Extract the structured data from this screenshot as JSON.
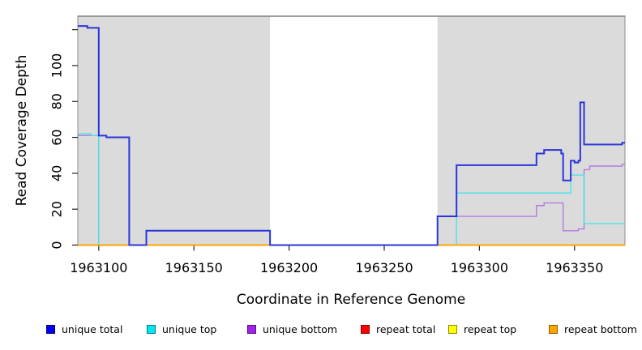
{
  "axes": {
    "x_title": "Coordinate in Reference Genome",
    "y_title": "Read Coverage Depth"
  },
  "chart_data": {
    "type": "line",
    "subtype": "step-coverage",
    "xlabel": "Coordinate in Reference Genome",
    "ylabel": "Read Coverage Depth",
    "xlim": [
      1963089,
      1963376.5
    ],
    "ylim": [
      0,
      127.5
    ],
    "grid": false,
    "background_color": "#ffffff",
    "shade_color": "#dbdbdb",
    "border_color": "#8c8c8c",
    "x_ticks": [
      {
        "v": 1963100,
        "label": "1963100"
      },
      {
        "v": 1963150,
        "label": "1963150"
      },
      {
        "v": 1963200,
        "label": "1963200"
      },
      {
        "v": 1963250,
        "label": "1963250"
      },
      {
        "v": 1963300,
        "label": "1963300"
      },
      {
        "v": 1963350,
        "label": "1963350"
      }
    ],
    "y_ticks": [
      {
        "v": 0,
        "label": "0"
      },
      {
        "v": 20,
        "label": "20"
      },
      {
        "v": 40,
        "label": "40"
      },
      {
        "v": 60,
        "label": "60"
      },
      {
        "v": 80,
        "label": "80"
      },
      {
        "v": 100,
        "label": "100"
      },
      {
        "v": 120,
        "label": ""
      }
    ],
    "shaded_regions": [
      {
        "x0": 1963089,
        "x1": 1963190
      },
      {
        "x0": 1963278,
        "x1": 1963376.5
      }
    ],
    "series": [
      {
        "name": "repeat top",
        "color": "#f2f230",
        "width": 1.4,
        "steps": [
          [
            1963089,
            0
          ]
        ]
      },
      {
        "name": "repeat total",
        "color": "#ee5555",
        "width": 1.4,
        "steps": [
          [
            1963089,
            0
          ]
        ]
      },
      {
        "name": "unique bottom",
        "color": "#b27be3",
        "width": 1.4,
        "steps": [
          [
            1963089,
            61
          ],
          [
            1963100,
            0
          ],
          [
            1963278,
            16
          ],
          [
            1963330,
            22
          ],
          [
            1963334,
            23.5
          ],
          [
            1963344,
            8
          ],
          [
            1963352,
            9
          ],
          [
            1963355,
            42
          ],
          [
            1963358,
            44
          ],
          [
            1963375,
            45
          ]
        ]
      },
      {
        "name": "unique top",
        "color": "#4de3e8",
        "width": 1.4,
        "steps": [
          [
            1963089,
            62
          ],
          [
            1963096,
            61
          ],
          [
            1963100,
            0
          ],
          [
            1963288,
            29
          ],
          [
            1963348,
            39
          ],
          [
            1963355,
            12
          ]
        ]
      },
      {
        "name": "repeat bottom",
        "color": "#ffa500",
        "width": 2,
        "steps": [
          [
            1963089,
            0
          ]
        ]
      },
      {
        "name": "unique total",
        "color": "#2b35db",
        "width": 2,
        "steps": [
          [
            1963089,
            122
          ],
          [
            1963094,
            121
          ],
          [
            1963100,
            61
          ],
          [
            1963104,
            60
          ],
          [
            1963116,
            0
          ],
          [
            1963125,
            8
          ],
          [
            1963190,
            0
          ],
          [
            1963278,
            16
          ],
          [
            1963288,
            44.5
          ],
          [
            1963330,
            51
          ],
          [
            1963334,
            53
          ],
          [
            1963343,
            51
          ],
          [
            1963344,
            36
          ],
          [
            1963348,
            47
          ],
          [
            1963350,
            46
          ],
          [
            1963352,
            47
          ],
          [
            1963353,
            79.5
          ],
          [
            1963355,
            56
          ],
          [
            1963375,
            57
          ]
        ]
      }
    ],
    "legend_position": "bottom"
  },
  "legend": {
    "items": [
      {
        "label": "unique total",
        "color": "#0000ee"
      },
      {
        "label": "unique top",
        "color": "#00e5ee"
      },
      {
        "label": "unique bottom",
        "color": "#a020f0"
      },
      {
        "label": "repeat total",
        "color": "#ff0000"
      },
      {
        "label": "repeat top",
        "color": "#ffff00"
      },
      {
        "label": "repeat bottom",
        "color": "#ffa500"
      }
    ]
  }
}
